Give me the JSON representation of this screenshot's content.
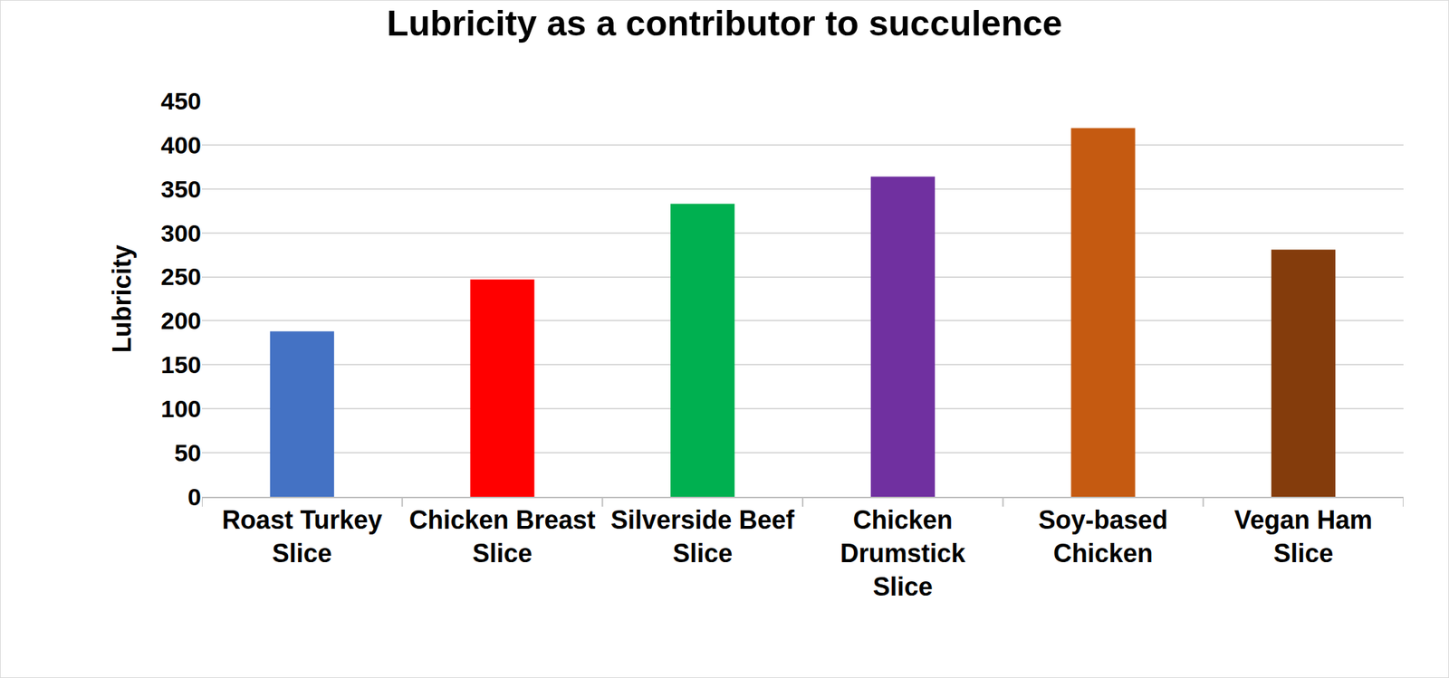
{
  "chart_data": {
    "type": "bar",
    "title": "Lubricity as a contributor to succulence",
    "y_label": "Lubricity",
    "categories": [
      "Roast Turkey Slice",
      "Chicken Breast Slice",
      "Silverside Beef Slice",
      "Chicken Drumstick Slice",
      "Soy-based Chicken",
      "Vegan Ham Slice"
    ],
    "values": [
      188,
      247,
      333,
      364,
      419,
      281
    ],
    "colors": [
      "#4472c4",
      "#ff0000",
      "#00b050",
      "#7030a0",
      "#c55a11",
      "#843c0c"
    ],
    "ylim": [
      0,
      450
    ],
    "yticks": [
      0,
      50,
      100,
      150,
      200,
      250,
      300,
      350,
      400,
      450
    ],
    "grid": true
  }
}
